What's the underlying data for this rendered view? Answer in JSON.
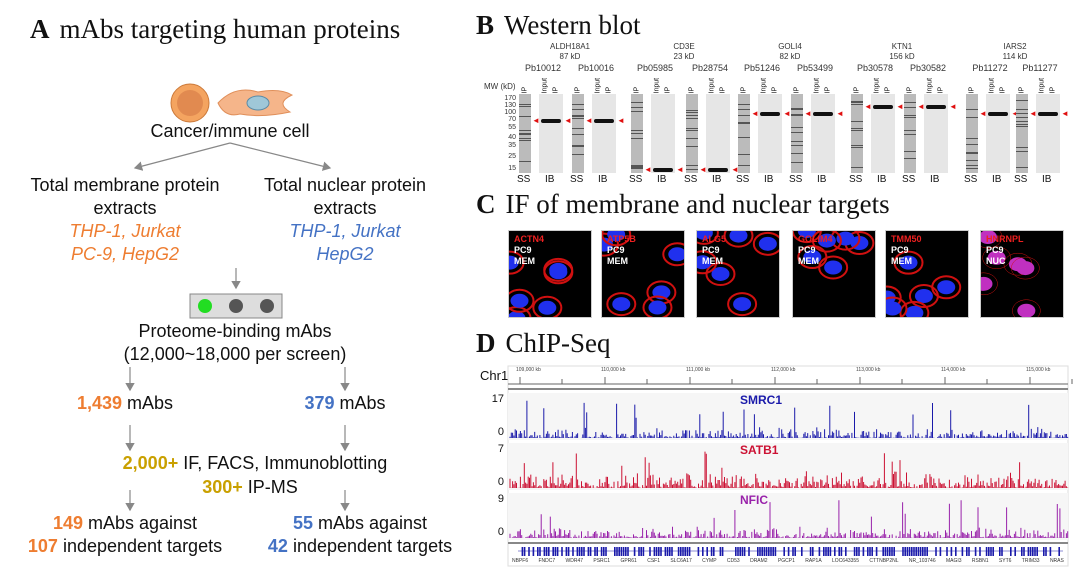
{
  "panelA": {
    "letter": "A",
    "title": "mAbs targeting human proteins",
    "cell_label": "Cancer/immune cell",
    "left_branch": {
      "line1": "Total membrane protein",
      "line2": "extracts",
      "cells1": "THP-1, Jurkat",
      "cells2": "PC-9, HepG2"
    },
    "right_branch": {
      "line1": "Total nuclear protein",
      "line2": "extracts",
      "cells1": "THP-1, Jurkat",
      "cells2": "HepG2"
    },
    "binding_line1": "Proteome-binding mAbs",
    "binding_line2": "(12,000~18,000 per screen)",
    "left_count": "1,439",
    "right_count": "379",
    "mabs": "mAbs",
    "validation_count": "2,000+",
    "validation_text": "IF, FACS, Immunoblotting",
    "ipms_count": "300+",
    "ipms_text": "IP-MS",
    "left_final_count": "149",
    "right_final_count": "55",
    "against": "mAbs against",
    "left_targets": "107",
    "right_targets": "42",
    "targets_text": "independent targets",
    "colors": {
      "orange": "#ee7d31",
      "blue": "#4472c4",
      "gold": "#c9a000",
      "green_dot": "#22dd22"
    }
  },
  "panelB": {
    "letter": "B",
    "title": "Western blot",
    "mw_label": "MW (kD)",
    "mw_markers": [
      "170",
      "130",
      "100",
      "70",
      "55",
      "40",
      "35",
      "25",
      "15"
    ],
    "ss": "SS",
    "ib": "IB",
    "lane_ip": "IP",
    "lane_input": "Input",
    "proteins": [
      {
        "name": "ALDH18A1",
        "size": "87 kD",
        "abs": [
          "Pb10012",
          "Pb10016"
        ]
      },
      {
        "name": "CD3E",
        "size": "23 kD",
        "abs": [
          "Pb05985",
          "Pb28754"
        ]
      },
      {
        "name": "GOLI4",
        "size": "82 kD",
        "abs": [
          "Pb51246",
          "Pb53499"
        ]
      },
      {
        "name": "KTN1",
        "size": "156 kD",
        "abs": [
          "Pb30578",
          "Pb30582"
        ]
      },
      {
        "name": "IARS2",
        "size": "114 kD",
        "abs": [
          "Pb11272",
          "Pb11277"
        ]
      }
    ]
  },
  "panelC": {
    "letter": "C",
    "title": "IF of membrane and nuclear targets",
    "tiles": [
      {
        "target": "ACTN4",
        "cell": "PC9",
        "loc": "MEM"
      },
      {
        "target": "ATP5B",
        "cell": "PC9",
        "loc": "MEM"
      },
      {
        "target": "ALG5",
        "cell": "PC9",
        "loc": "MEM"
      },
      {
        "target": "GOLIM4",
        "cell": "PC9",
        "loc": "MEM"
      },
      {
        "target": "TMM50",
        "cell": "PC9",
        "loc": "MEM"
      },
      {
        "target": "HNRNPL",
        "cell": "PC9",
        "loc": "NUC"
      }
    ]
  },
  "panelD": {
    "letter": "D",
    "title": "ChIP-Seq",
    "chrom": "Chr1",
    "ruler": [
      "109,000 kb",
      "110,000 kb",
      "111,000 kb",
      "112,000 kb",
      "113,000 kb",
      "114,000 kb",
      "115,000 kb"
    ],
    "tracks": [
      {
        "name": "SMRC1",
        "max": "17",
        "min": "0",
        "color": "#1a1aaa"
      },
      {
        "name": "SATB1",
        "max": "7",
        "min": "0",
        "color": "#cc1133"
      },
      {
        "name": "NFIC",
        "max": "9",
        "min": "0",
        "color": "#9922aa"
      }
    ],
    "genes": [
      "NBPF6",
      "FNDC7",
      "WDR47",
      "PSRC1",
      "GPR61",
      "CSF1",
      "SLC6A17",
      "CYMP",
      "CD53",
      "DRAM2",
      "PGCP1",
      "RAP1A",
      "LOC643355",
      "CTTNBP2NL",
      "NR_103746",
      "MAGI3",
      "RSBN1",
      "SYT6",
      "TRIM33",
      "NRAS"
    ]
  }
}
